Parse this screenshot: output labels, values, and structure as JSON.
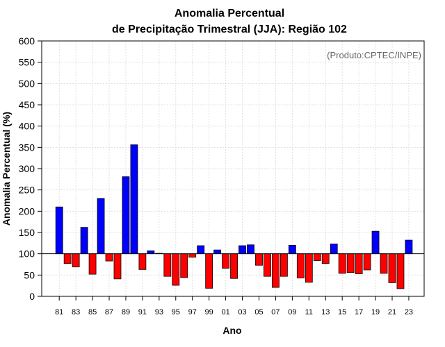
{
  "chart_data": {
    "type": "bar",
    "title_line1": "Anomalia Percentual",
    "title_line2": "de Precipitação Trimestral (JJA): Região 102",
    "watermark": "(Produto:CPTEC/INPE)",
    "xlabel": "Ano",
    "ylabel": "Anomalia Percentual (%)",
    "ylim": [
      0,
      600
    ],
    "yticks": [
      0,
      50,
      100,
      150,
      200,
      250,
      300,
      350,
      400,
      450,
      500,
      550,
      600
    ],
    "baseline": 100,
    "grid": true,
    "colors": {
      "above": "#0000ff",
      "below": "#ff0000",
      "baseline": "#000000",
      "grid": "#d9d9d9"
    },
    "categories": [
      "81",
      "82",
      "83",
      "84",
      "85",
      "86",
      "87",
      "88",
      "89",
      "90",
      "91",
      "92",
      "93",
      "94",
      "95",
      "96",
      "97",
      "98",
      "99",
      "00",
      "01",
      "02",
      "03",
      "04",
      "05",
      "06",
      "07",
      "08",
      "09",
      "10",
      "11",
      "12",
      "13",
      "14",
      "15",
      "16",
      "17",
      "18",
      "19",
      "20",
      "21",
      "22",
      "23"
    ],
    "xtick_labels": [
      "81",
      "83",
      "85",
      "87",
      "89",
      "91",
      "93",
      "95",
      "97",
      "99",
      "01",
      "03",
      "05",
      "07",
      "09",
      "11",
      "13",
      "15",
      "17",
      "19",
      "21",
      "23"
    ],
    "values": [
      210,
      77,
      69,
      162,
      52,
      230,
      83,
      41,
      281,
      356,
      63,
      107,
      101,
      47,
      26,
      44,
      92,
      119,
      19,
      109,
      66,
      42,
      119,
      121,
      73,
      47,
      21,
      47,
      120,
      43,
      33,
      84,
      77,
      123,
      54,
      56,
      53,
      62,
      153,
      54,
      32,
      18,
      132
    ]
  }
}
